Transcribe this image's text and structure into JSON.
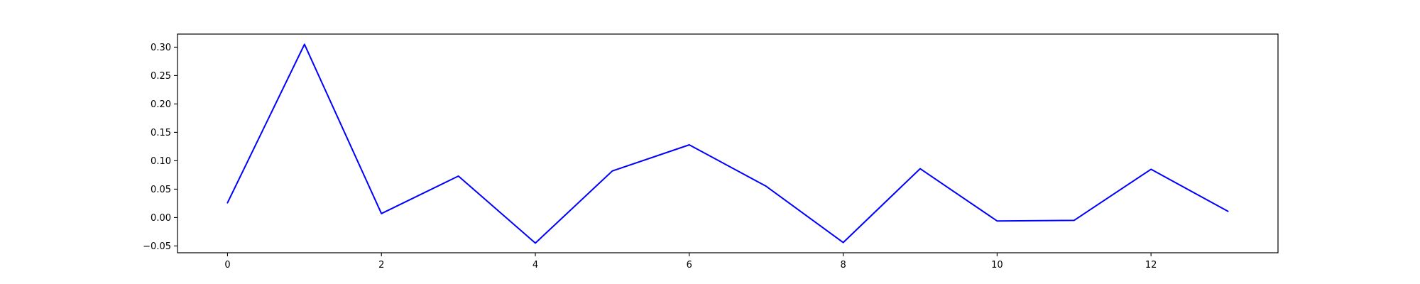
{
  "chart_data": {
    "type": "line",
    "title": "",
    "xlabel": "",
    "ylabel": "",
    "xlim": [
      -0.65,
      13.65
    ],
    "ylim": [
      -0.062,
      0.323
    ],
    "grid": false,
    "x_ticks": [
      0,
      2,
      4,
      6,
      8,
      10,
      12
    ],
    "x_tick_labels": [
      "0",
      "2",
      "4",
      "6",
      "8",
      "10",
      "12"
    ],
    "y_ticks": [
      -0.05,
      0.0,
      0.05,
      0.1,
      0.15,
      0.2,
      0.25,
      0.3
    ],
    "y_tick_labels": [
      "−0.05",
      "0.00",
      "0.05",
      "0.10",
      "0.15",
      "0.20",
      "0.25",
      "0.30"
    ],
    "series": [
      {
        "color": "#0000ff",
        "x": [
          0,
          1,
          2,
          3,
          4,
          5,
          6,
          7,
          8,
          9,
          10,
          11,
          12,
          13
        ],
        "values": [
          0.026,
          0.305,
          0.007,
          0.073,
          -0.045,
          0.082,
          0.128,
          0.055,
          -0.044,
          0.086,
          -0.006,
          -0.005,
          0.085,
          0.011
        ]
      }
    ]
  }
}
